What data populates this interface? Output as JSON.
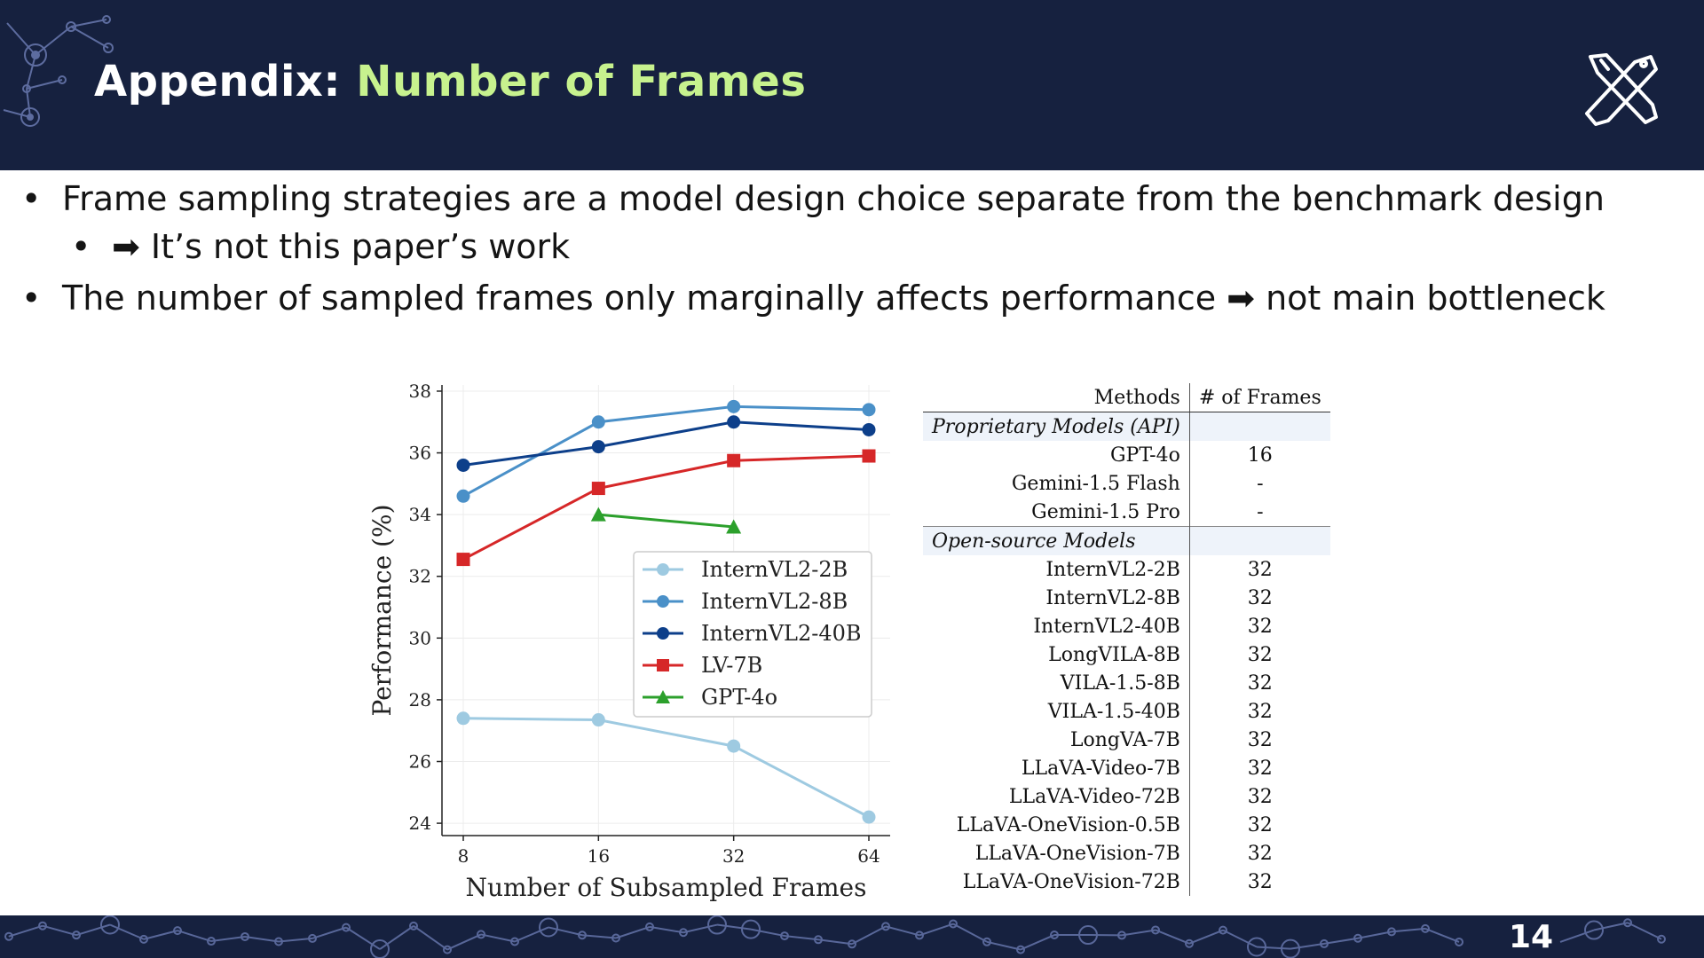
{
  "header": {
    "title_prefix": "Appendix: ",
    "title_accent": "Number of Frames"
  },
  "bullets": [
    {
      "text": "Frame sampling strategies are a model design choice separate from the benchmark design"
    },
    {
      "text": "➡ It’s not this paper’s work"
    },
    {
      "text": "The number of sampled frames only marginally affects performance ➡ not main bottleneck"
    }
  ],
  "bullet_symbol": "•",
  "chart_data": {
    "type": "line",
    "x": [
      8,
      16,
      32,
      64
    ],
    "xticks": [
      "8",
      "16",
      "32",
      "64"
    ],
    "xscale": "log2",
    "xlabel": "Number of Subsampled Frames",
    "ylabel": "Performance (%)",
    "ylim": [
      23.6,
      38.2
    ],
    "yticks": [
      24,
      26,
      28,
      30,
      32,
      34,
      36,
      38
    ],
    "grid": true,
    "legend": "center-right",
    "series": [
      {
        "name": "InternVL2-2B",
        "color": "#9ecae1",
        "marker": "circle",
        "x": [
          8,
          16,
          32,
          64
        ],
        "values": [
          27.4,
          27.35,
          26.5,
          24.2
        ]
      },
      {
        "name": "InternVL2-8B",
        "color": "#4a90c8",
        "marker": "circle",
        "x": [
          8,
          16,
          32,
          64
        ],
        "values": [
          34.6,
          37.0,
          37.5,
          37.4
        ]
      },
      {
        "name": "InternVL2-40B",
        "color": "#0d3f8a",
        "marker": "circle",
        "x": [
          8,
          16,
          32,
          64
        ],
        "values": [
          35.6,
          36.2,
          37.0,
          36.75
        ]
      },
      {
        "name": "LV-7B",
        "color": "#d62728",
        "marker": "square",
        "x": [
          8,
          16,
          32,
          64
        ],
        "values": [
          32.55,
          34.85,
          35.75,
          35.9
        ]
      },
      {
        "name": "GPT-4o",
        "color": "#2ca02c",
        "marker": "triangle",
        "x": [
          16,
          32
        ],
        "values": [
          34.0,
          33.6
        ]
      }
    ]
  },
  "table": {
    "headers": [
      "Methods",
      "# of Frames"
    ],
    "groups": [
      {
        "name": "Proprietary Models (API)",
        "rows": [
          {
            "method": "GPT-4o",
            "frames": "16"
          },
          {
            "method": "Gemini-1.5 Flash",
            "frames": "-"
          },
          {
            "method": "Gemini-1.5 Pro",
            "frames": "-"
          }
        ]
      },
      {
        "name": "Open-source Models",
        "rows": [
          {
            "method": "InternVL2-2B",
            "frames": "32"
          },
          {
            "method": "InternVL2-8B",
            "frames": "32"
          },
          {
            "method": "InternVL2-40B",
            "frames": "32"
          },
          {
            "method": "LongVILA-8B",
            "frames": "32"
          },
          {
            "method": "VILA-1.5-8B",
            "frames": "32"
          },
          {
            "method": "VILA-1.5-40B",
            "frames": "32"
          },
          {
            "method": "LongVA-7B",
            "frames": "32"
          },
          {
            "method": "LLaVA-Video-7B",
            "frames": "32"
          },
          {
            "method": "LLaVA-Video-72B",
            "frames": "32"
          },
          {
            "method": "LLaVA-OneVision-0.5B",
            "frames": "32"
          },
          {
            "method": "LLaVA-OneVision-7B",
            "frames": "32"
          },
          {
            "method": "LLaVA-OneVision-72B",
            "frames": "32"
          }
        ]
      }
    ]
  },
  "footer": {
    "page_number": "14"
  },
  "colors": {
    "header_bg": "#16213f",
    "title_accent": "#c7f28e",
    "decor": "#6f7fb8"
  },
  "icons": {
    "logo": "crossed-tools-logo-icon",
    "decor": "network-graph-decor"
  }
}
